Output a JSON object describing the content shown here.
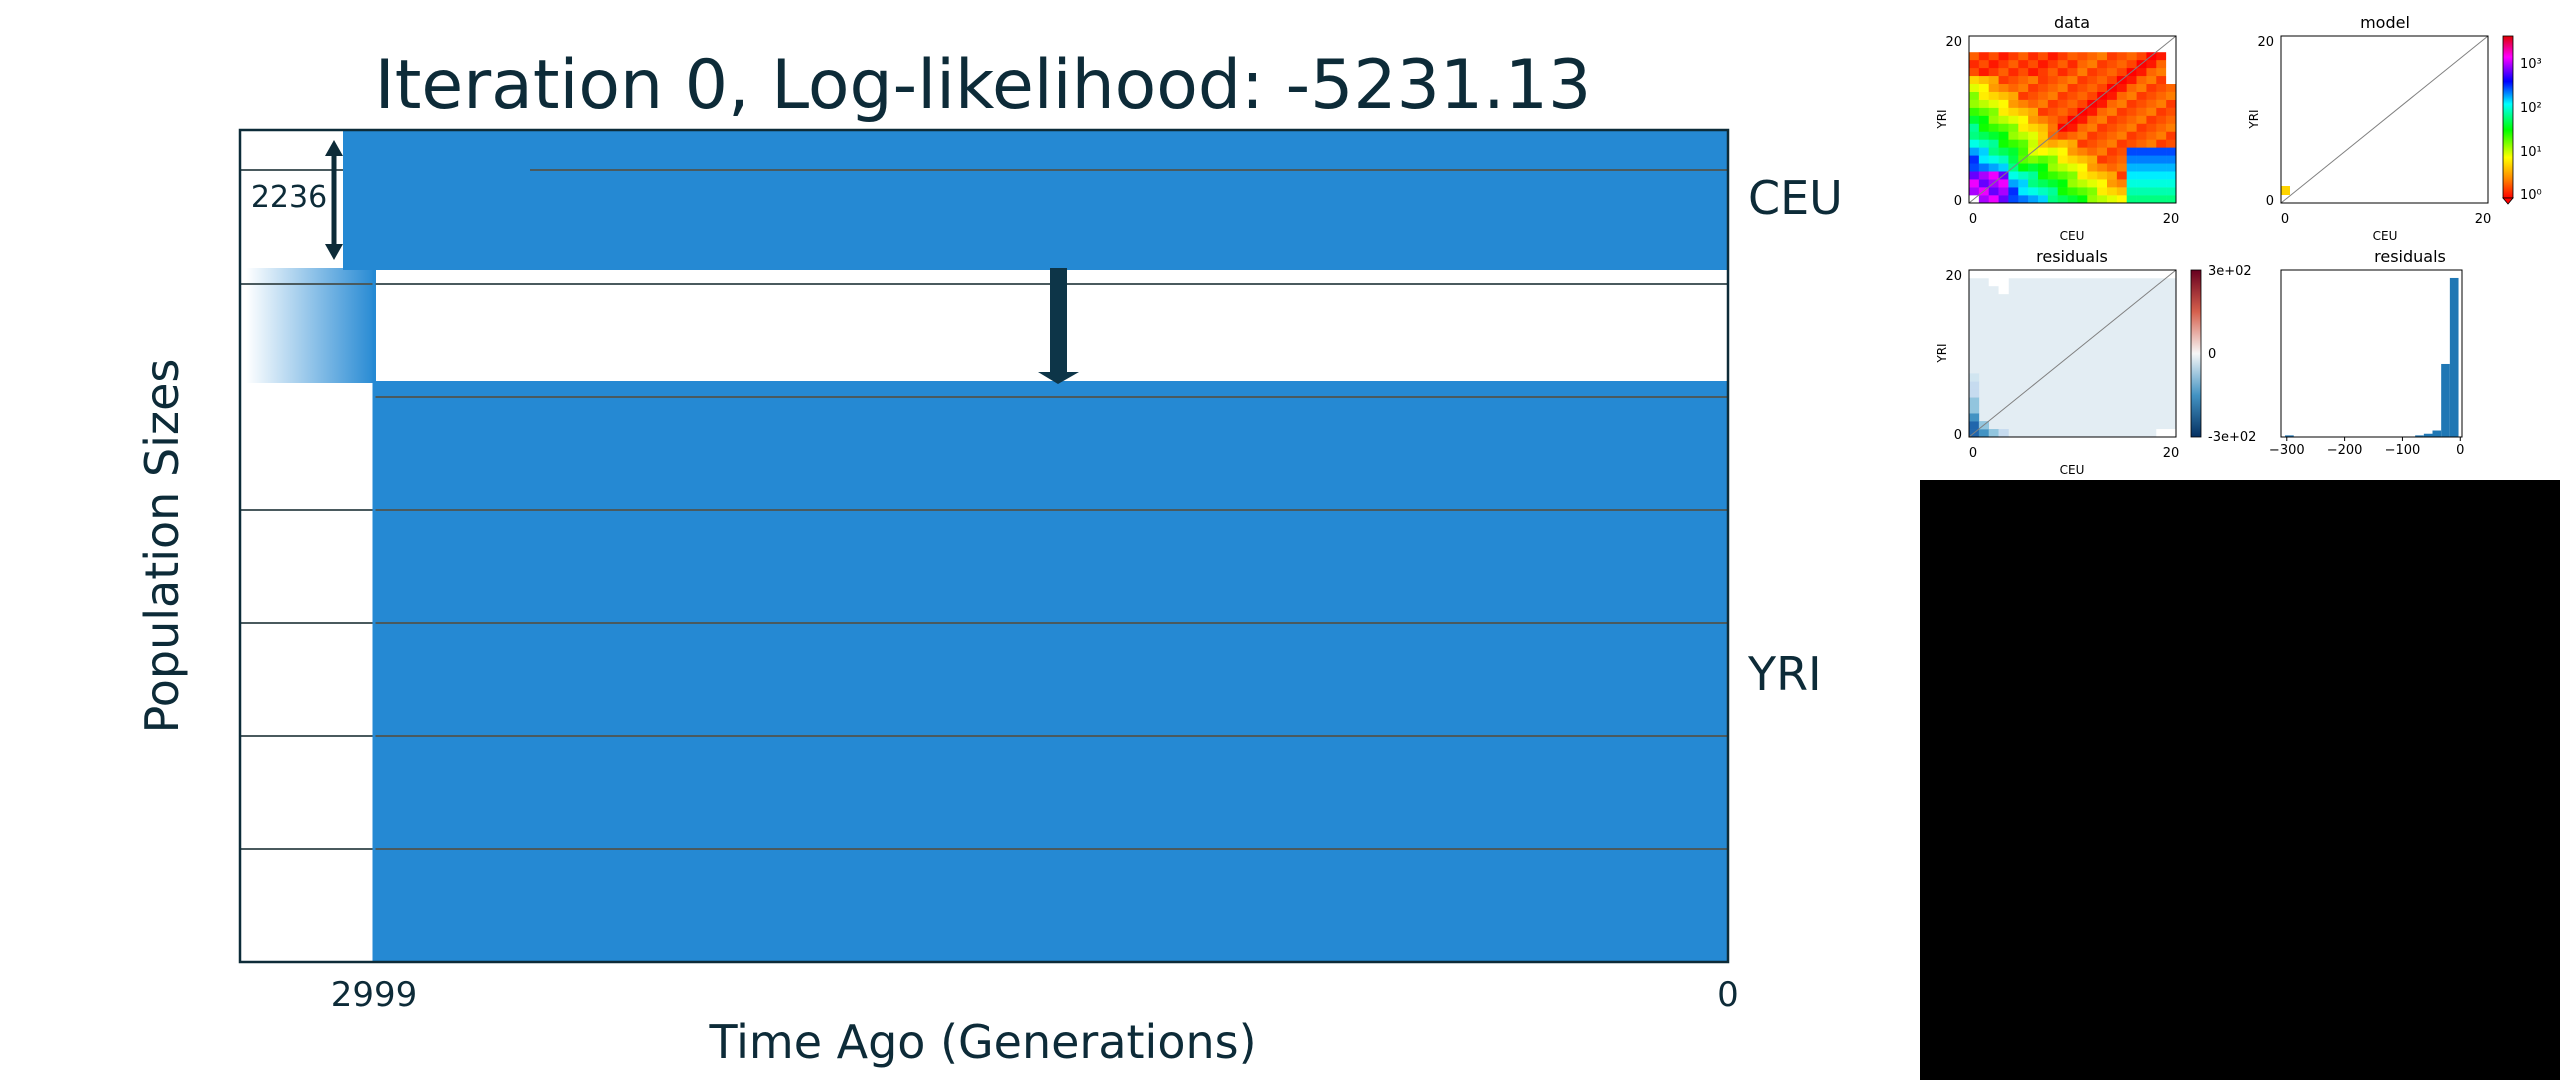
{
  "chart_data": [
    {
      "type": "demography",
      "title": "Iteration 0, Log-likelihood: -5231.13",
      "xlabel": "Time Ago (Generations)",
      "ylabel": "Population Sizes",
      "x_ticks": [
        "2999",
        "0"
      ],
      "populations": [
        {
          "name": "CEU",
          "size_label": "2236"
        },
        {
          "name": "YRI"
        }
      ],
      "split_time": 2999,
      "migration_arrow": {
        "from": "CEU",
        "to": "YRI"
      },
      "colors": {
        "population": "#2589d3",
        "text": "#0d2b38",
        "grid": "#4a5a5e"
      }
    },
    {
      "type": "heatmap",
      "title": "data",
      "xlabel": "CEU",
      "ylabel": "YRI",
      "x_ticks": [
        "0",
        "20"
      ],
      "y_ticks": [
        "0",
        "20"
      ],
      "grid_size": 21,
      "colormap": "log rainbow"
    },
    {
      "type": "heatmap",
      "title": "model",
      "xlabel": "CEU",
      "ylabel": "YRI",
      "x_ticks": [
        "0",
        "20"
      ],
      "y_ticks": [
        "0",
        "20"
      ],
      "colorbar": {
        "scale": "log",
        "ticks": [
          "10³",
          "10²",
          "10¹",
          "10⁰"
        ]
      }
    },
    {
      "type": "heatmap",
      "title": "residuals",
      "xlabel": "CEU",
      "ylabel": "YRI",
      "x_ticks": [
        "0",
        "20"
      ],
      "y_ticks": [
        "0",
        "20"
      ],
      "colorbar": {
        "ticks": [
          "3e+02",
          "0",
          "-3e+02"
        ],
        "colormap": "diverging red-white-blue"
      }
    },
    {
      "type": "bar",
      "title": "residuals",
      "x_ticks": [
        "−300",
        "−200",
        "−100",
        "0"
      ],
      "xlim": [
        -310,
        3
      ],
      "bins": [
        {
          "x0": -303,
          "x1": -288,
          "count": 1
        },
        {
          "x0": -78,
          "x1": -63,
          "count": 1
        },
        {
          "x0": -63,
          "x1": -48,
          "count": 2
        },
        {
          "x0": -48,
          "x1": -33,
          "count": 4
        },
        {
          "x0": -33,
          "x1": -18,
          "count": 45
        },
        {
          "x0": -18,
          "x1": -3,
          "count": 98
        }
      ]
    }
  ]
}
